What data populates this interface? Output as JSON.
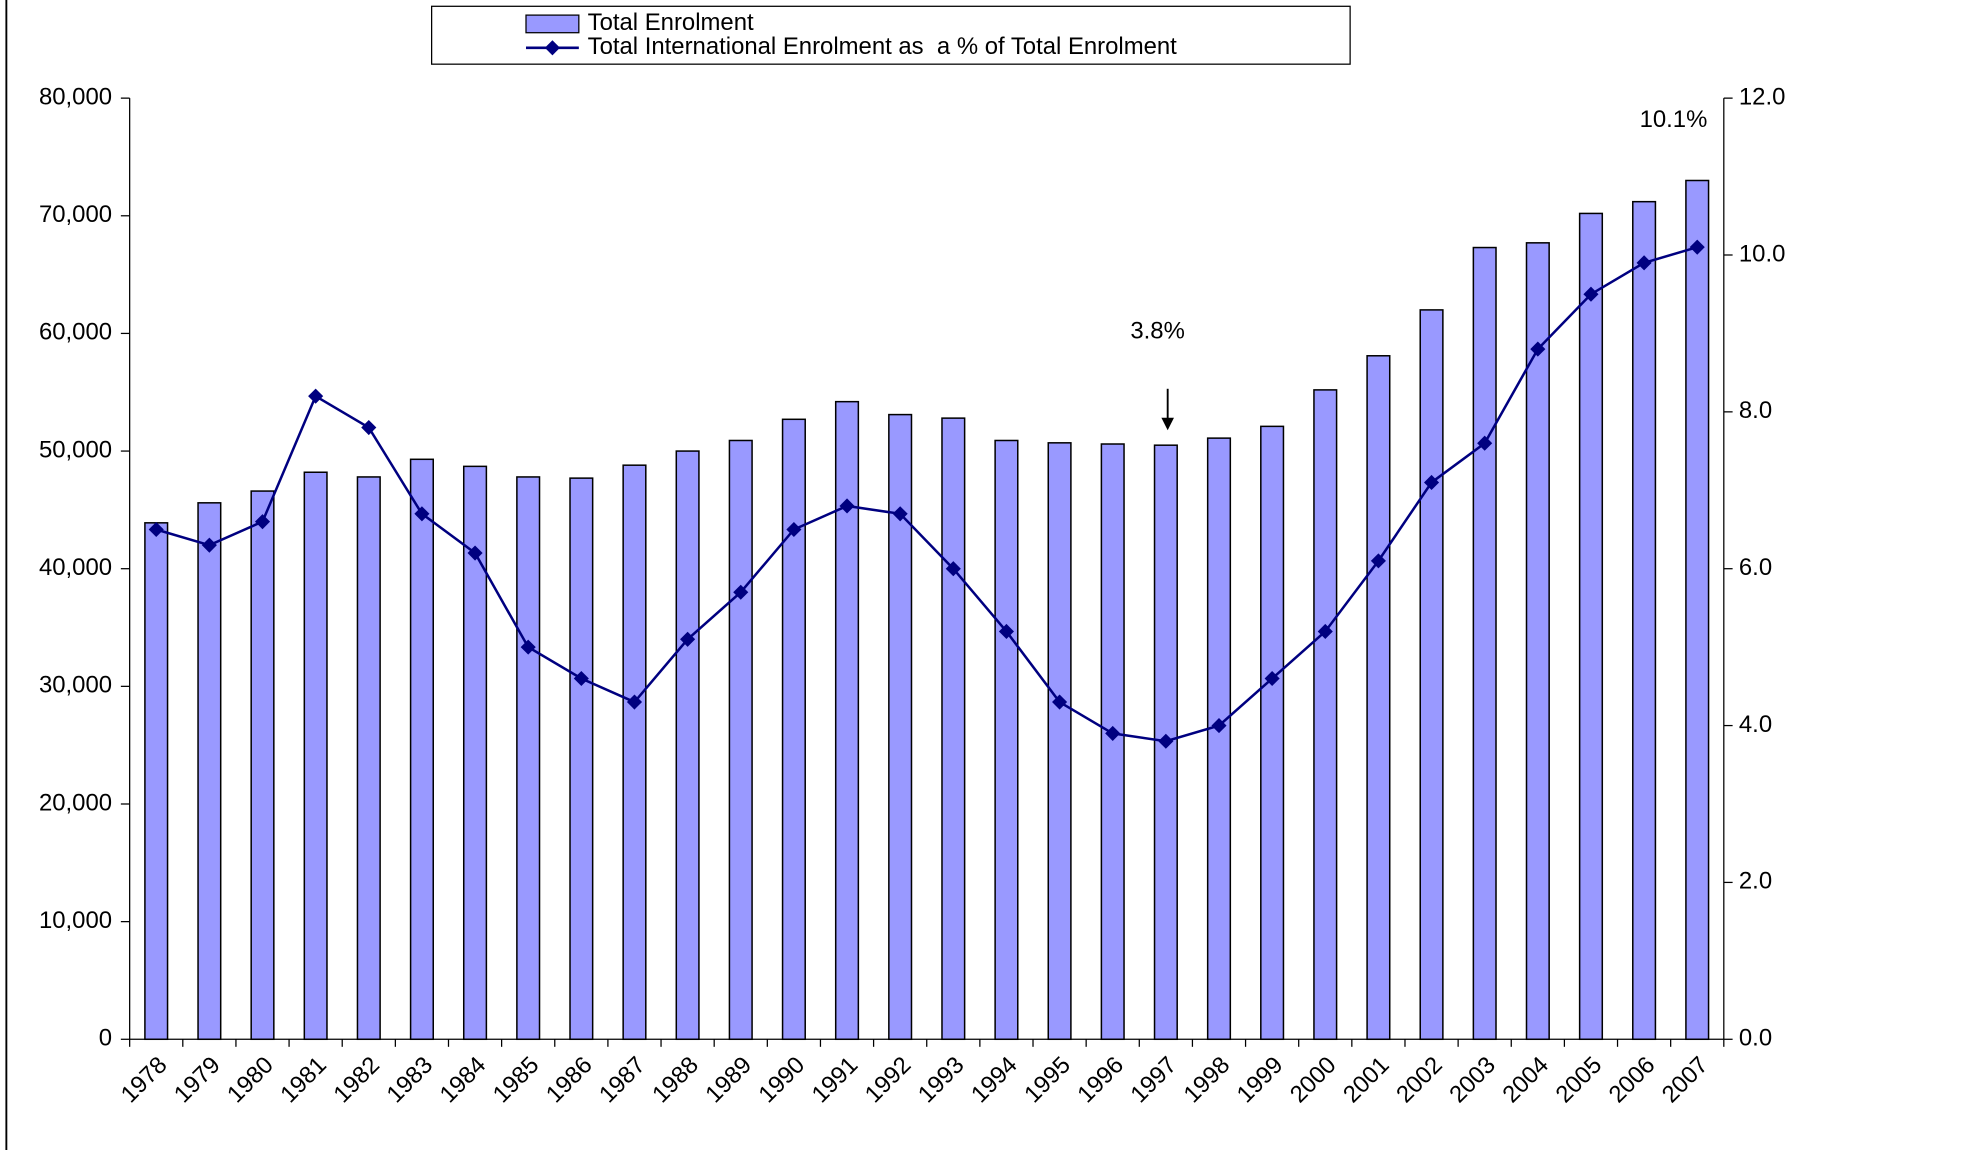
{
  "chart_data": {
    "type": "bar-line",
    "categories": [
      "1978",
      "1979",
      "1980",
      "1981",
      "1982",
      "1983",
      "1984",
      "1985",
      "1986",
      "1987",
      "1988",
      "1989",
      "1990",
      "1991",
      "1992",
      "1993",
      "1994",
      "1995",
      "1996",
      "1997",
      "1998",
      "1999",
      "2000",
      "2001",
      "2002",
      "2003",
      "2004",
      "2005",
      "2006",
      "2007"
    ],
    "series": [
      {
        "name": "Total Enrolment",
        "type": "bar",
        "color": "#9999ff",
        "values": [
          43900,
          45600,
          46600,
          48200,
          47800,
          49300,
          48700,
          47800,
          47700,
          48800,
          50000,
          50900,
          52700,
          54200,
          53100,
          52800,
          50900,
          50700,
          50600,
          50500,
          51100,
          52100,
          55200,
          58100,
          62000,
          67300,
          67700,
          70200,
          71200,
          73000
        ]
      },
      {
        "name": "Total International Enrolment as  a % of Total Enrolment",
        "type": "line",
        "axis": "y2",
        "color": "#000080",
        "values": [
          6.5,
          6.3,
          6.6,
          8.2,
          7.8,
          6.7,
          6.2,
          5.0,
          4.6,
          4.3,
          5.1,
          5.7,
          6.5,
          6.8,
          6.7,
          6.0,
          5.2,
          4.3,
          3.9,
          3.8,
          4.0,
          4.6,
          5.2,
          6.1,
          7.1,
          7.6,
          8.8,
          9.5,
          9.9,
          10.1
        ]
      }
    ],
    "ylim": [
      0,
      80000
    ],
    "yticks": [
      0,
      {
        "value": 10000,
        "label": "10,000"
      },
      {
        "value": 20000,
        "label": "20,000"
      },
      {
        "value": 30000,
        "label": "30,000"
      },
      {
        "value": 40000,
        "label": "40,000"
      },
      {
        "value": 50000,
        "label": "50,000"
      },
      {
        "value": 60000,
        "label": "60,000"
      },
      {
        "value": 70000,
        "label": "70,000"
      },
      {
        "value": 80000,
        "label": "80,000"
      }
    ],
    "y2lim": [
      0,
      12
    ],
    "y2ticks": [
      {
        "value": 0,
        "label": "0.0"
      },
      {
        "value": 2,
        "label": "2.0"
      },
      {
        "value": 4,
        "label": "4.0"
      },
      {
        "value": 6,
        "label": "6.0"
      },
      {
        "value": 8,
        "label": "8.0"
      },
      {
        "value": 10,
        "label": "10.0"
      },
      {
        "value": 12,
        "label": "12.0"
      }
    ],
    "annotations": [
      "3.8%",
      "10.1%"
    ],
    "grid": false,
    "legend": "top"
  }
}
